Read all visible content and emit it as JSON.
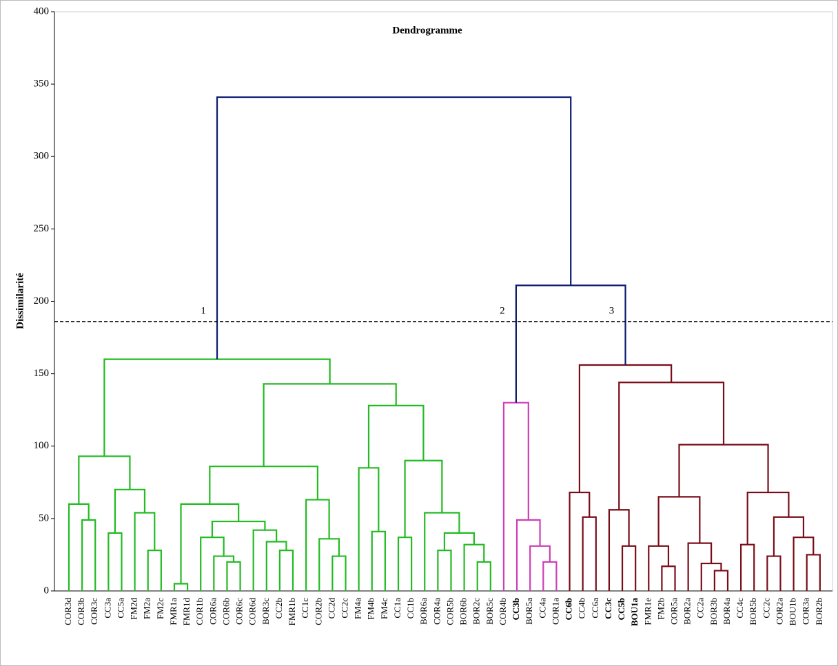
{
  "chart_data": {
    "type": "dendrogram",
    "title": "Dendrogramme",
    "ylabel": "Dissimilarité",
    "ylim": [
      0,
      400
    ],
    "yticks": [
      0,
      50,
      100,
      150,
      200,
      250,
      300,
      350,
      400
    ],
    "cut_height": 186,
    "cut_labels": [
      "1",
      "2",
      "3"
    ],
    "tree": {
      "height": 341,
      "color": "#0b1a70",
      "children": [
        {
          "height": 160,
          "color": "#22bb22",
          "children": [
            {
              "height": 93,
              "children": [
                {
                  "height": 60,
                  "children": [
                    {
                      "label": "COR3d"
                    },
                    {
                      "height": 49,
                      "children": [
                        {
                          "label": "COR3b"
                        },
                        {
                          "label": "COR3c"
                        }
                      ]
                    }
                  ]
                },
                {
                  "height": 70,
                  "children": [
                    {
                      "height": 40,
                      "children": [
                        {
                          "label": "CC3a"
                        },
                        {
                          "label": "CC5a"
                        }
                      ]
                    },
                    {
                      "height": 54,
                      "children": [
                        {
                          "label": "FM2d"
                        },
                        {
                          "height": 28,
                          "children": [
                            {
                              "label": "FM2a"
                            },
                            {
                              "label": "FM2c"
                            }
                          ]
                        }
                      ]
                    }
                  ]
                }
              ]
            },
            {
              "height": 143,
              "children": [
                {
                  "height": 86,
                  "children": [
                    {
                      "height": 60,
                      "children": [
                        {
                          "height": 5,
                          "children": [
                            {
                              "label": "FMR1a"
                            },
                            {
                              "label": "FMR1d"
                            }
                          ]
                        },
                        {
                          "height": 48,
                          "children": [
                            {
                              "height": 37,
                              "children": [
                                {
                                  "label": "COR1b"
                                },
                                {
                                  "height": 24,
                                  "children": [
                                    {
                                      "label": "COR6a"
                                    },
                                    {
                                      "height": 20,
                                      "children": [
                                        {
                                          "label": "COR6b"
                                        },
                                        {
                                          "label": "COR6c"
                                        }
                                      ]
                                    }
                                  ]
                                }
                              ]
                            },
                            {
                              "height": 42,
                              "children": [
                                {
                                  "label": "COR6d"
                                },
                                {
                                  "height": 34,
                                  "children": [
                                    {
                                      "label": "BOR3c"
                                    },
                                    {
                                      "height": 28,
                                      "children": [
                                        {
                                          "label": "CC2b"
                                        },
                                        {
                                          "label": "FMR1b"
                                        }
                                      ]
                                    }
                                  ]
                                }
                              ]
                            }
                          ]
                        }
                      ]
                    },
                    {
                      "height": 63,
                      "children": [
                        {
                          "label": "CC1c"
                        },
                        {
                          "height": 36,
                          "children": [
                            {
                              "label": "COR2b"
                            },
                            {
                              "height": 24,
                              "children": [
                                {
                                  "label": "CC2d"
                                },
                                {
                                  "label": "CC2c"
                                }
                              ]
                            }
                          ]
                        }
                      ]
                    }
                  ]
                },
                {
                  "height": 128,
                  "children": [
                    {
                      "height": 85,
                      "children": [
                        {
                          "label": "FM4a"
                        },
                        {
                          "height": 41,
                          "children": [
                            {
                              "label": "FM4b"
                            },
                            {
                              "label": "FM4c"
                            }
                          ]
                        }
                      ]
                    },
                    {
                      "height": 90,
                      "children": [
                        {
                          "height": 37,
                          "children": [
                            {
                              "label": "CC1a"
                            },
                            {
                              "label": "CC1b"
                            }
                          ]
                        },
                        {
                          "height": 54,
                          "children": [
                            {
                              "label": "BOR6a"
                            },
                            {
                              "height": 40,
                              "children": [
                                {
                                  "height": 28,
                                  "children": [
                                    {
                                      "label": "COR4a"
                                    },
                                    {
                                      "label": "COR5b"
                                    }
                                  ]
                                },
                                {
                                  "height": 32,
                                  "children": [
                                    {
                                      "label": "BOR6b"
                                    },
                                    {
                                      "height": 20,
                                      "children": [
                                        {
                                          "label": "BOR2c"
                                        },
                                        {
                                          "label": "BOR5c"
                                        }
                                      ]
                                    }
                                  ]
                                }
                              ]
                            }
                          ]
                        }
                      ]
                    }
                  ]
                }
              ]
            }
          ]
        },
        {
          "height": 211,
          "children": [
            {
              "height": 130,
              "color": "#cc3fb8",
              "children": [
                {
                  "label": "COR4b"
                },
                {
                  "height": 49,
                  "children": [
                    {
                      "label": "CC3b",
                      "label_color": "#e04fd0"
                    },
                    {
                      "height": 31,
                      "children": [
                        {
                          "label": "BOR5a"
                        },
                        {
                          "height": 20,
                          "children": [
                            {
                              "label": "CC4a"
                            },
                            {
                              "label": "COR1a"
                            }
                          ]
                        }
                      ]
                    }
                  ]
                }
              ]
            },
            {
              "height": 156,
              "color": "#7a0c18",
              "children": [
                {
                  "height": 68,
                  "children": [
                    {
                      "label": "CC6b",
                      "label_color": "#8b0a0a"
                    },
                    {
                      "height": 51,
                      "children": [
                        {
                          "label": "CC4b"
                        },
                        {
                          "label": "CC6a"
                        }
                      ]
                    }
                  ]
                },
                {
                  "height": 144,
                  "children": [
                    {
                      "height": 56,
                      "children": [
                        {
                          "label": "CC3c",
                          "label_color": "#8b0a0a"
                        },
                        {
                          "height": 31,
                          "children": [
                            {
                              "label": "CC5b",
                              "label_color": "#8b0a0a"
                            },
                            {
                              "label": "BOU1a",
                              "label_color": "#8b0a0a"
                            }
                          ]
                        }
                      ]
                    },
                    {
                      "height": 101,
                      "children": [
                        {
                          "height": 65,
                          "children": [
                            {
                              "height": 31,
                              "children": [
                                {
                                  "label": "FMR1e"
                                },
                                {
                                  "height": 17,
                                  "children": [
                                    {
                                      "label": "FM2b"
                                    },
                                    {
                                      "label": "COR5a"
                                    }
                                  ]
                                }
                              ]
                            },
                            {
                              "height": 33,
                              "children": [
                                {
                                  "label": "BOR2a"
                                },
                                {
                                  "height": 19,
                                  "children": [
                                    {
                                      "label": "CC2a"
                                    },
                                    {
                                      "height": 14,
                                      "children": [
                                        {
                                          "label": "BOR3b"
                                        },
                                        {
                                          "label": "BOR4a"
                                        }
                                      ]
                                    }
                                  ]
                                }
                              ]
                            }
                          ]
                        },
                        {
                          "height": 68,
                          "children": [
                            {
                              "height": 32,
                              "children": [
                                {
                                  "label": "CC4c"
                                },
                                {
                                  "label": "BOR5b"
                                }
                              ]
                            },
                            {
                              "height": 51,
                              "children": [
                                {
                                  "height": 24,
                                  "children": [
                                    {
                                      "label": "CC2c"
                                    },
                                    {
                                      "label": "COR2a"
                                    }
                                  ]
                                },
                                {
                                  "height": 37,
                                  "children": [
                                    {
                                      "label": "BOU1b"
                                    },
                                    {
                                      "height": 25,
                                      "children": [
                                        {
                                          "label": "COR3a"
                                        },
                                        {
                                          "label": "BOR2b"
                                        }
                                      ]
                                    }
                                  ]
                                }
                              ]
                            }
                          ]
                        }
                      ]
                    }
                  ]
                }
              ]
            }
          ]
        }
      ]
    }
  }
}
